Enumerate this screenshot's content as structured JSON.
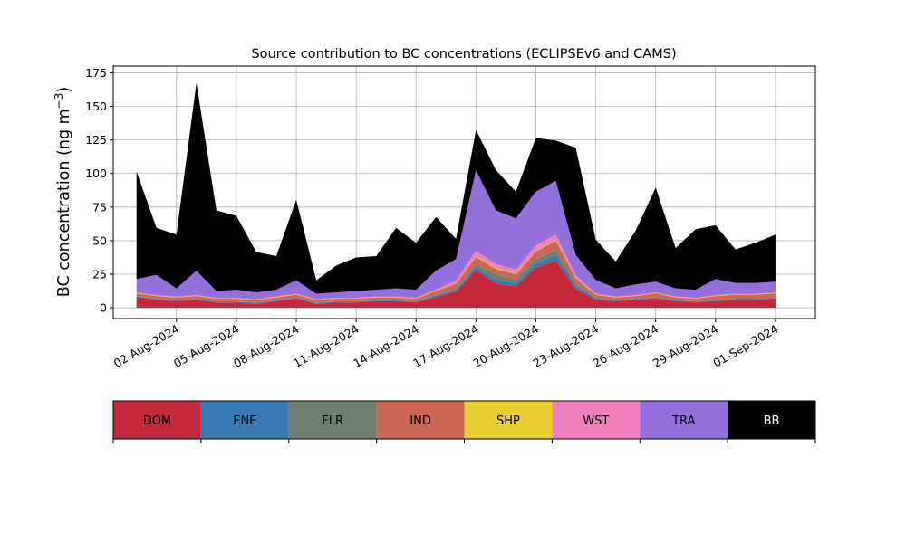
{
  "chart_data": {
    "type": "area",
    "title": "Source contribution to BC concentrations (ECLIPSEv6 and CAMS)",
    "ylabel": "BC concentration (ng m⁻³)",
    "ylabel_main": "BC concentration (ng m",
    "ylabel_sup": "−3",
    "ylabel_close": ")",
    "xlabel": "",
    "ylim": [
      -8,
      180
    ],
    "yticks": [
      0,
      25,
      50,
      75,
      100,
      125,
      150,
      175
    ],
    "xlim": [
      "2024-07-29T20:00",
      "2024-09-03T00:00"
    ],
    "xticks": [
      "2024-08-02",
      "2024-08-05",
      "2024-08-08",
      "2024-08-11",
      "2024-08-14",
      "2024-08-17",
      "2024-08-20",
      "2024-08-23",
      "2024-08-26",
      "2024-08-29",
      "2024-09-01"
    ],
    "xtick_labels": [
      "02-Aug-2024",
      "05-Aug-2024",
      "08-Aug-2024",
      "11-Aug-2024",
      "14-Aug-2024",
      "17-Aug-2024",
      "20-Aug-2024",
      "23-Aug-2024",
      "26-Aug-2024",
      "29-Aug-2024",
      "01-Sep-2024"
    ],
    "grid": true,
    "legend_placement": "bottom",
    "stacked": true,
    "x": [
      "2024-07-31",
      "2024-08-01",
      "2024-08-02",
      "2024-08-03",
      "2024-08-04",
      "2024-08-05",
      "2024-08-06",
      "2024-08-07",
      "2024-08-08",
      "2024-08-09",
      "2024-08-10",
      "2024-08-11",
      "2024-08-12",
      "2024-08-13",
      "2024-08-14",
      "2024-08-15",
      "2024-08-16",
      "2024-08-17",
      "2024-08-18",
      "2024-08-19",
      "2024-08-20",
      "2024-08-21",
      "2024-08-22",
      "2024-08-23",
      "2024-08-24",
      "2024-08-25",
      "2024-08-26",
      "2024-08-27",
      "2024-08-28",
      "2024-08-29",
      "2024-08-30",
      "2024-08-31",
      "2024-09-01"
    ],
    "series": [
      {
        "name": "DOM",
        "color": "#c22a3c",
        "values": [
          8,
          6,
          5,
          6,
          4,
          4,
          3,
          5,
          7,
          3,
          4,
          4,
          5,
          5,
          4,
          8,
          12,
          28,
          18,
          16,
          30,
          35,
          14,
          6,
          5,
          6,
          7,
          5,
          4,
          5,
          6,
          6,
          7
        ]
      },
      {
        "name": "ENE",
        "color": "#3878b4",
        "values": [
          0.5,
          0.5,
          0.5,
          0.5,
          0.5,
          0.5,
          0.5,
          0.5,
          0.5,
          0.5,
          0.5,
          0.5,
          0.5,
          0.5,
          0.5,
          1,
          1,
          2,
          3,
          2,
          3,
          4,
          2,
          1,
          0.5,
          0.5,
          0.5,
          0.5,
          0.5,
          0.5,
          0.5,
          0.5,
          0.5
        ]
      },
      {
        "name": "FLR",
        "color": "#6d8070",
        "values": [
          0.3,
          0.3,
          0.3,
          0.3,
          0.3,
          0.3,
          0.3,
          0.3,
          0.3,
          0.3,
          0.3,
          0.3,
          0.3,
          0.3,
          0.3,
          0.5,
          1,
          2,
          4,
          3,
          3,
          4,
          2,
          0.5,
          0.3,
          0.3,
          0.3,
          0.3,
          0.3,
          0.3,
          0.3,
          0.3,
          0.3
        ]
      },
      {
        "name": "IND",
        "color": "#cc6656",
        "values": [
          2,
          2,
          2,
          2,
          2,
          2,
          2,
          2,
          2,
          2,
          2,
          2,
          2,
          2,
          2,
          3,
          4,
          6,
          4,
          4,
          6,
          7,
          4,
          2,
          2,
          2,
          3,
          2,
          2,
          3,
          3,
          3,
          3
        ]
      },
      {
        "name": "SHP",
        "color": "#e6cf2e",
        "values": [
          0.2,
          0.2,
          0.2,
          0.2,
          0.2,
          0.2,
          0.2,
          0.2,
          0.2,
          0.2,
          0.2,
          0.2,
          0.2,
          0.2,
          0.2,
          0.2,
          0.3,
          0.5,
          0.5,
          0.5,
          0.5,
          0.5,
          0.3,
          0.2,
          0.2,
          0.2,
          0.2,
          0.2,
          0.2,
          0.2,
          0.2,
          0.2,
          0.2
        ]
      },
      {
        "name": "WST",
        "color": "#f07fbd",
        "values": [
          0.5,
          0.5,
          0.5,
          0.5,
          0.5,
          0.5,
          0.5,
          0.5,
          0.5,
          0.5,
          0.5,
          0.5,
          0.5,
          0.5,
          0.5,
          1,
          2,
          4,
          3,
          3,
          4,
          4,
          2,
          1,
          0.5,
          0.5,
          0.5,
          0.5,
          0.5,
          0.5,
          0.5,
          0.5,
          0.5
        ]
      },
      {
        "name": "TRA",
        "color": "#9370db",
        "values": [
          10,
          15,
          6,
          18,
          5,
          6,
          5,
          5,
          10,
          4,
          4,
          5,
          5,
          6,
          6,
          14,
          16,
          60,
          40,
          38,
          40,
          40,
          15,
          10,
          6,
          8,
          8,
          6,
          6,
          12,
          8,
          8,
          8
        ]
      },
      {
        "name": "BB",
        "color": "#000000",
        "values": [
          80,
          35,
          40,
          140,
          60,
          55,
          30,
          25,
          60,
          10,
          20,
          25,
          25,
          45,
          35,
          40,
          15,
          30,
          30,
          20,
          40,
          30,
          80,
          30,
          20,
          40,
          70,
          30,
          45,
          40,
          25,
          30,
          35
        ]
      }
    ]
  }
}
